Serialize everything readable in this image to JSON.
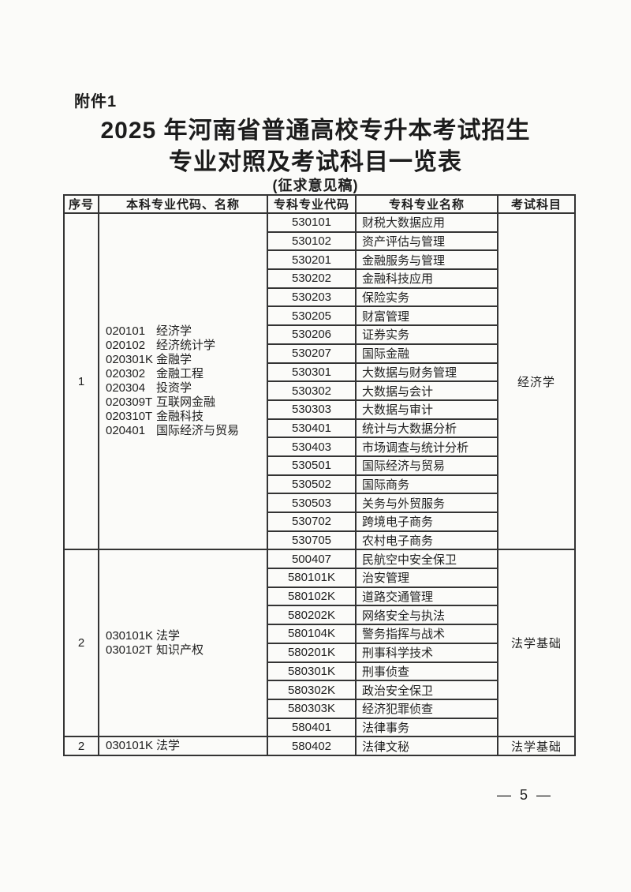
{
  "page": {
    "attachment_label": "附件1",
    "title_line1": "2025 年河南省普通高校专升本考试招生",
    "title_line2": "专业对照及考试科目一览表",
    "subtitle": "(征求意见稿)",
    "page_number": "— 5 —"
  },
  "table": {
    "columns": [
      "序号",
      "本科专业代码、名称",
      "专科专业代码",
      "专科专业名称",
      "考试科目"
    ],
    "groups": [
      {
        "seq": "1",
        "exam_subject": "经济学",
        "undergrad_majors": [
          {
            "code": "020101",
            "name": "经济学"
          },
          {
            "code": "020102",
            "name": "经济统计学"
          },
          {
            "code": "020301K",
            "name": "金融学"
          },
          {
            "code": "020302",
            "name": "金融工程"
          },
          {
            "code": "020304",
            "name": "投资学"
          },
          {
            "code": "020309T",
            "name": "互联网金融"
          },
          {
            "code": "020310T",
            "name": "金融科技"
          },
          {
            "code": "020401",
            "name": "国际经济与贸易"
          }
        ],
        "associate_majors": [
          {
            "code": "530101",
            "name": "财税大数据应用"
          },
          {
            "code": "530102",
            "name": "资产评估与管理"
          },
          {
            "code": "530201",
            "name": "金融服务与管理"
          },
          {
            "code": "530202",
            "name": "金融科技应用"
          },
          {
            "code": "530203",
            "name": "保险实务"
          },
          {
            "code": "530205",
            "name": "财富管理"
          },
          {
            "code": "530206",
            "name": "证券实务"
          },
          {
            "code": "530207",
            "name": "国际金融"
          },
          {
            "code": "530301",
            "name": "大数据与财务管理"
          },
          {
            "code": "530302",
            "name": "大数据与会计"
          },
          {
            "code": "530303",
            "name": "大数据与审计"
          },
          {
            "code": "530401",
            "name": "统计与大数据分析"
          },
          {
            "code": "530403",
            "name": "市场调查与统计分析"
          },
          {
            "code": "530501",
            "name": "国际经济与贸易"
          },
          {
            "code": "530502",
            "name": "国际商务"
          },
          {
            "code": "530503",
            "name": "关务与外贸服务"
          },
          {
            "code": "530702",
            "name": "跨境电子商务"
          },
          {
            "code": "530705",
            "name": "农村电子商务"
          }
        ]
      },
      {
        "seq": "2",
        "exam_subject": "法学基础",
        "undergrad_majors": [
          {
            "code": "030101K",
            "name": "法学"
          },
          {
            "code": "030102T",
            "name": "知识产权"
          }
        ],
        "associate_majors": [
          {
            "code": "500407",
            "name": "民航空中安全保卫"
          },
          {
            "code": "580101K",
            "name": "治安管理"
          },
          {
            "code": "580102K",
            "name": "道路交通管理"
          },
          {
            "code": "580202K",
            "name": "网络安全与执法"
          },
          {
            "code": "580104K",
            "name": "警务指挥与战术"
          },
          {
            "code": "580201K",
            "name": "刑事科学技术"
          },
          {
            "code": "580301K",
            "name": "刑事侦查"
          },
          {
            "code": "580302K",
            "name": "政治安全保卫"
          },
          {
            "code": "580303K",
            "name": "经济犯罪侦查"
          },
          {
            "code": "580401",
            "name": "法律事务"
          }
        ]
      },
      {
        "seq": "2",
        "exam_subject": "法学基础",
        "undergrad_majors": [
          {
            "code": "030101K",
            "name": "法学"
          }
        ],
        "associate_majors": [
          {
            "code": "580402",
            "name": "法律文秘"
          }
        ]
      }
    ]
  }
}
